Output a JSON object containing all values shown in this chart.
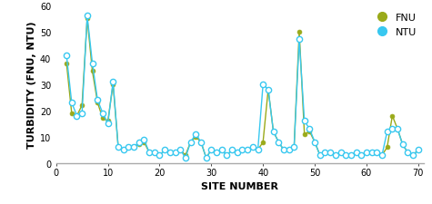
{
  "xlabel": "SITE NUMBER",
  "ylabel": "TURBIDITY (FNU, NTU)",
  "xlim": [
    0,
    71
  ],
  "ylim": [
    0,
    60
  ],
  "xticks": [
    0,
    10,
    20,
    30,
    40,
    50,
    60,
    70
  ],
  "yticks": [
    0,
    10,
    20,
    30,
    40,
    50,
    60
  ],
  "fnu_color": "#9aaa1a",
  "ntu_color": "#38c8f0",
  "fnu_x": [
    2,
    3,
    4,
    5,
    6,
    7,
    8,
    9,
    10,
    11,
    12,
    13,
    14,
    15,
    16,
    17,
    18,
    19,
    20,
    21,
    22,
    23,
    24,
    25,
    26,
    27,
    28,
    29,
    30,
    31,
    32,
    33,
    34,
    35,
    36,
    37,
    38,
    39,
    40,
    41,
    42,
    43,
    44,
    45,
    46,
    47,
    48,
    49,
    50,
    51,
    52,
    53,
    54,
    55,
    56,
    57,
    58,
    59,
    60,
    61,
    62,
    63,
    64,
    65,
    66,
    67,
    68,
    69,
    70
  ],
  "fnu_y": [
    38,
    19,
    18,
    22,
    55,
    35,
    23,
    17,
    16,
    30,
    6,
    5,
    6,
    6,
    7,
    8,
    4,
    4,
    3,
    5,
    4,
    4,
    5,
    3,
    8,
    10,
    8,
    2,
    5,
    4,
    5,
    3,
    5,
    4,
    5,
    5,
    6,
    5,
    8,
    28,
    12,
    8,
    5,
    5,
    6,
    50,
    11,
    12,
    8,
    3,
    4,
    4,
    3,
    4,
    3,
    3,
    4,
    3,
    4,
    4,
    4,
    3,
    6,
    18,
    13,
    7,
    4,
    3,
    5
  ],
  "ntu_x": [
    2,
    3,
    4,
    5,
    6,
    7,
    8,
    9,
    10,
    11,
    12,
    13,
    14,
    15,
    16,
    17,
    18,
    19,
    20,
    21,
    22,
    23,
    24,
    25,
    26,
    27,
    28,
    29,
    30,
    31,
    32,
    33,
    34,
    35,
    36,
    37,
    38,
    39,
    40,
    41,
    42,
    43,
    44,
    45,
    46,
    47,
    48,
    49,
    50,
    51,
    52,
    53,
    54,
    55,
    56,
    57,
    58,
    59,
    60,
    61,
    62,
    63,
    64,
    65,
    66,
    67,
    68,
    69,
    70
  ],
  "ntu_y": [
    41,
    23,
    18,
    19,
    56,
    38,
    24,
    19,
    15,
    31,
    6,
    5,
    6,
    6,
    8,
    9,
    4,
    4,
    3,
    5,
    4,
    4,
    5,
    2,
    8,
    11,
    8,
    2,
    5,
    4,
    5,
    3,
    5,
    4,
    5,
    5,
    6,
    5,
    30,
    28,
    12,
    8,
    5,
    5,
    6,
    47,
    16,
    13,
    8,
    3,
    4,
    4,
    3,
    4,
    3,
    3,
    4,
    3,
    4,
    4,
    4,
    3,
    12,
    13,
    13,
    7,
    4,
    3,
    5
  ],
  "bg_color": "#ffffff",
  "legend_fnu_label": "FNU",
  "legend_ntu_label": "NTU",
  "fnu_marker_size": 3.5,
  "ntu_marker_size": 4.5,
  "linewidth": 1.0,
  "xlabel_fontsize": 8,
  "ylabel_fontsize": 8,
  "tick_fontsize": 7,
  "legend_fontsize": 8
}
